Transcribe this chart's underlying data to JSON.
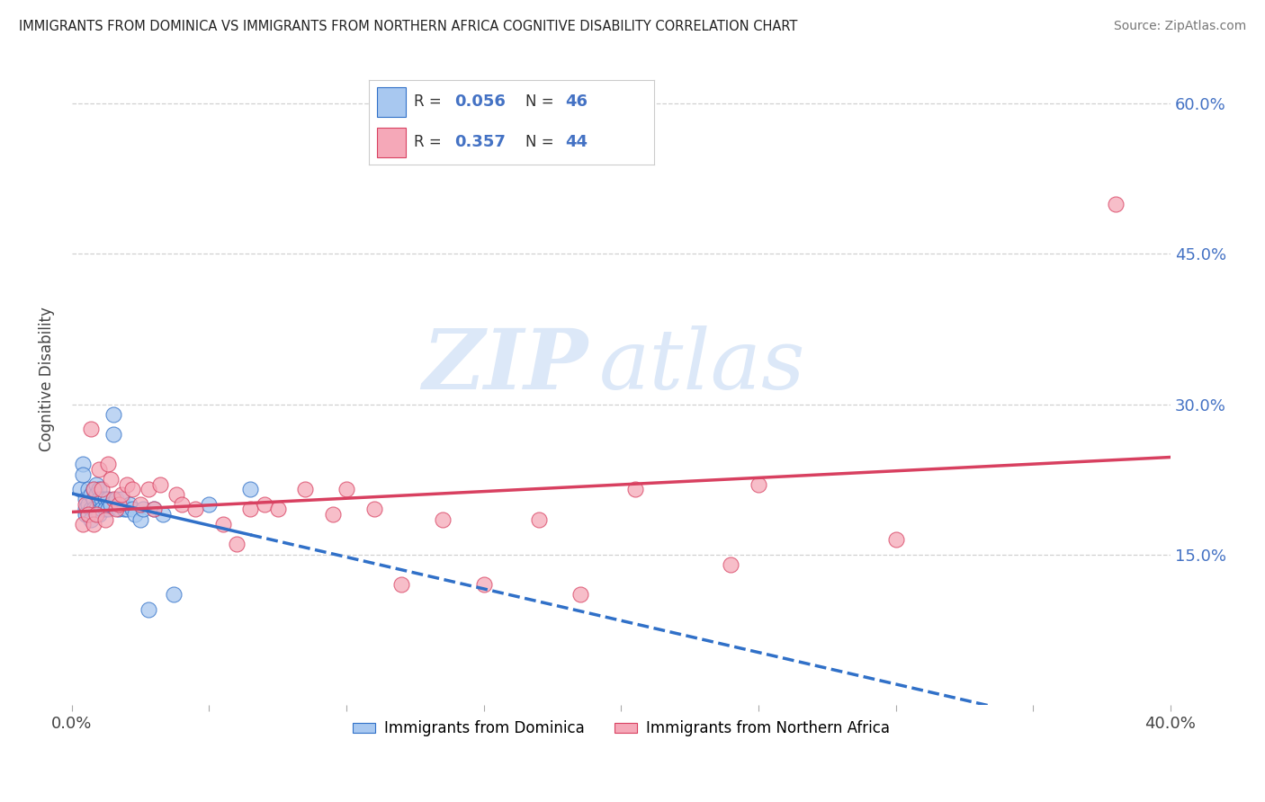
{
  "title": "IMMIGRANTS FROM DOMINICA VS IMMIGRANTS FROM NORTHERN AFRICA COGNITIVE DISABILITY CORRELATION CHART",
  "source": "Source: ZipAtlas.com",
  "ylabel": "Cognitive Disability",
  "xlim": [
    0.0,
    0.4
  ],
  "ylim": [
    0.0,
    0.65
  ],
  "xtick_positions": [
    0.0,
    0.05,
    0.1,
    0.15,
    0.2,
    0.25,
    0.3,
    0.35,
    0.4
  ],
  "xticklabels": [
    "0.0%",
    "",
    "",
    "",
    "",
    "",
    "",
    "",
    "40.0%"
  ],
  "ytick_positions": [
    0.15,
    0.3,
    0.45,
    0.6
  ],
  "ytick_labels": [
    "15.0%",
    "30.0%",
    "45.0%",
    "60.0%"
  ],
  "R_dominica": 0.056,
  "N_dominica": 46,
  "R_northern_africa": 0.357,
  "N_northern_africa": 44,
  "dominica_fill": "#a8c8f0",
  "dominica_edge": "#3070c8",
  "northern_africa_fill": "#f5a8b8",
  "northern_africa_edge": "#d84060",
  "dominica_line_color": "#3070c8",
  "northern_africa_line_color": "#d84060",
  "background_color": "#ffffff",
  "grid_color": "#d0d0d0",
  "watermark_color": "#dce8f8",
  "dominica_x": [
    0.003,
    0.004,
    0.004,
    0.005,
    0.005,
    0.005,
    0.006,
    0.006,
    0.006,
    0.007,
    0.007,
    0.007,
    0.008,
    0.008,
    0.008,
    0.009,
    0.009,
    0.009,
    0.01,
    0.01,
    0.01,
    0.011,
    0.011,
    0.012,
    0.012,
    0.013,
    0.013,
    0.014,
    0.015,
    0.015,
    0.016,
    0.017,
    0.018,
    0.019,
    0.02,
    0.021,
    0.022,
    0.023,
    0.025,
    0.026,
    0.028,
    0.03,
    0.033,
    0.037,
    0.05,
    0.065
  ],
  "dominica_y": [
    0.215,
    0.24,
    0.23,
    0.205,
    0.195,
    0.19,
    0.215,
    0.2,
    0.19,
    0.21,
    0.195,
    0.185,
    0.215,
    0.205,
    0.195,
    0.22,
    0.21,
    0.195,
    0.215,
    0.205,
    0.19,
    0.205,
    0.195,
    0.205,
    0.195,
    0.205,
    0.195,
    0.2,
    0.29,
    0.27,
    0.205,
    0.195,
    0.205,
    0.195,
    0.195,
    0.2,
    0.195,
    0.19,
    0.185,
    0.195,
    0.095,
    0.195,
    0.19,
    0.11,
    0.2,
    0.215
  ],
  "northern_africa_x": [
    0.004,
    0.005,
    0.006,
    0.007,
    0.008,
    0.008,
    0.009,
    0.01,
    0.011,
    0.012,
    0.013,
    0.014,
    0.015,
    0.016,
    0.017,
    0.018,
    0.02,
    0.022,
    0.025,
    0.028,
    0.03,
    0.032,
    0.038,
    0.04,
    0.045,
    0.055,
    0.06,
    0.065,
    0.07,
    0.075,
    0.085,
    0.095,
    0.1,
    0.11,
    0.12,
    0.135,
    0.15,
    0.17,
    0.185,
    0.205,
    0.24,
    0.25,
    0.3,
    0.38
  ],
  "northern_africa_y": [
    0.18,
    0.2,
    0.19,
    0.275,
    0.18,
    0.215,
    0.19,
    0.235,
    0.215,
    0.185,
    0.24,
    0.225,
    0.205,
    0.195,
    0.2,
    0.21,
    0.22,
    0.215,
    0.2,
    0.215,
    0.195,
    0.22,
    0.21,
    0.2,
    0.195,
    0.18,
    0.16,
    0.195,
    0.2,
    0.195,
    0.215,
    0.19,
    0.215,
    0.195,
    0.12,
    0.185,
    0.12,
    0.185,
    0.11,
    0.215,
    0.14,
    0.22,
    0.165,
    0.5
  ]
}
